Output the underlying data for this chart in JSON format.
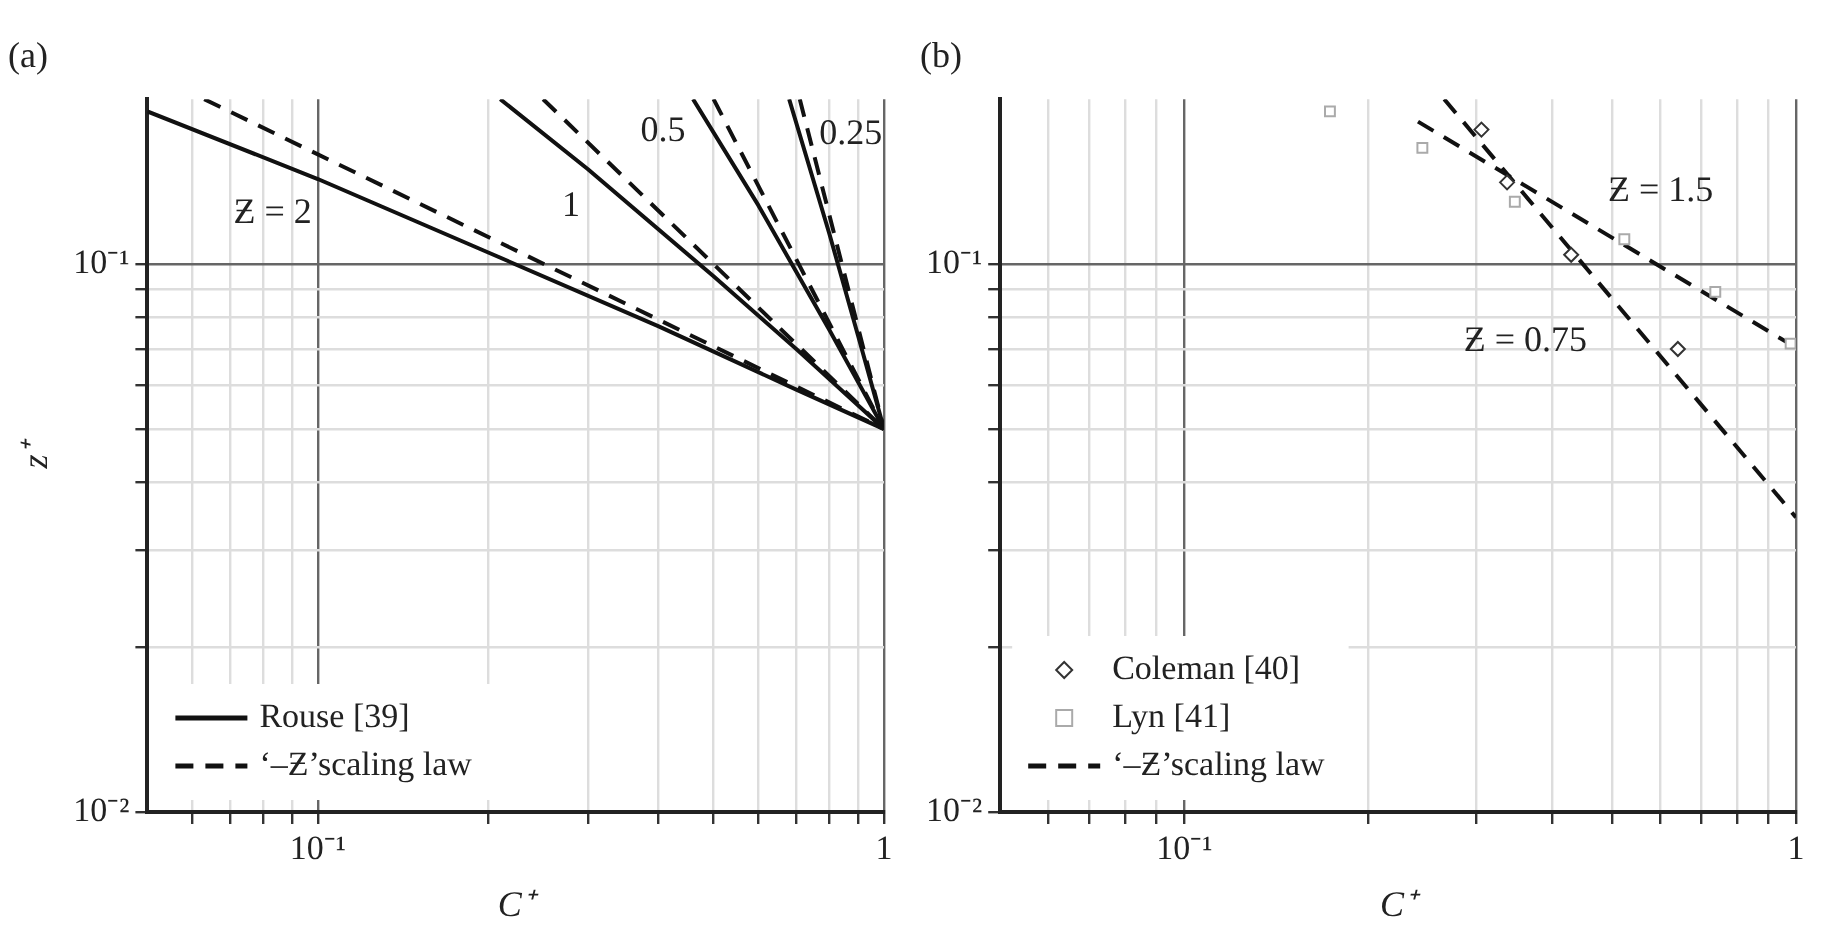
{
  "chart_data": [
    {
      "type": "line",
      "title": "(a)",
      "xlabel": "C⁺",
      "ylabel": "z⁺",
      "log": "xy",
      "grid": true,
      "legend": "bottom left",
      "xlim": [
        0.05,
        1
      ],
      "ylim": [
        0.01,
        0.2
      ],
      "xticks": [
        {
          "value": 0.06,
          "label": null
        },
        {
          "value": 0.07,
          "label": null
        },
        {
          "value": 0.08,
          "label": null
        },
        {
          "value": 0.09,
          "label": null
        },
        {
          "value": 0.1,
          "label": "10⁻¹"
        },
        {
          "value": 0.2,
          "label": null
        },
        {
          "value": 0.3,
          "label": null
        },
        {
          "value": 0.4,
          "label": null
        },
        {
          "value": 0.5,
          "label": null
        },
        {
          "value": 0.6,
          "label": null
        },
        {
          "value": 0.7,
          "label": null
        },
        {
          "value": 0.8,
          "label": null
        },
        {
          "value": 0.9,
          "label": null
        },
        {
          "value": 1,
          "label": "1"
        }
      ],
      "yticks": [
        {
          "value": 0.01,
          "label": "10⁻²"
        },
        {
          "value": 0.02,
          "label": null
        },
        {
          "value": 0.03,
          "label": null
        },
        {
          "value": 0.04,
          "label": null
        },
        {
          "value": 0.05,
          "label": null
        },
        {
          "value": 0.06,
          "label": null
        },
        {
          "value": 0.07,
          "label": null
        },
        {
          "value": 0.08,
          "label": null
        },
        {
          "value": 0.09,
          "label": null
        },
        {
          "value": 0.1,
          "label": "10⁻¹"
        }
      ],
      "series": [
        {
          "name": "Rouse [39]",
          "type": "line",
          "line_style": "solid",
          "marker": "none",
          "color": "#111111",
          "x": [
            0.05,
            0.1,
            0.2,
            0.4,
            0.7,
            1
          ],
          "values": [
            0.19,
            0.143,
            0.105,
            0.077,
            0.059,
            0.05
          ]
        },
        {
          "type": "line",
          "line_style": "solid",
          "marker": "none",
          "color": "#111111",
          "x": [
            0.21,
            0.3,
            0.5,
            0.7,
            1
          ],
          "values": [
            0.2,
            0.149,
            0.095,
            0.07,
            0.05
          ]
        },
        {
          "type": "line",
          "line_style": "solid",
          "marker": "none",
          "color": "#111111",
          "x": [
            0.46,
            0.6,
            0.8,
            1
          ],
          "values": [
            0.2,
            0.128,
            0.076,
            0.05
          ]
        },
        {
          "type": "line",
          "line_style": "solid",
          "marker": "none",
          "color": "#111111",
          "x": [
            0.68,
            0.8,
            0.9,
            1
          ],
          "values": [
            0.2,
            0.114,
            0.074,
            0.05
          ]
        },
        {
          "name": "‘–Ƶ’scaling law",
          "type": "line",
          "line_style": "dashed",
          "marker": "none",
          "color": "#111111",
          "x": [
            0.063,
            1
          ],
          "values": [
            0.2,
            0.05
          ]
        },
        {
          "type": "line",
          "line_style": "dashed",
          "marker": "none",
          "color": "#111111",
          "x": [
            0.25,
            1
          ],
          "values": [
            0.2,
            0.05
          ]
        },
        {
          "type": "line",
          "line_style": "dashed",
          "marker": "none",
          "color": "#111111",
          "x": [
            0.5,
            1
          ],
          "values": [
            0.2,
            0.05
          ]
        },
        {
          "type": "line",
          "line_style": "dashed",
          "marker": "none",
          "color": "#111111",
          "x": [
            0.71,
            1
          ],
          "values": [
            0.2,
            0.05
          ]
        }
      ],
      "annotations": [
        "Ƶ = 2",
        "1",
        "0.5",
        "0.25"
      ]
    },
    {
      "type": "line",
      "title": "(b)",
      "xlabel": "C⁺",
      "log": "xy",
      "grid": true,
      "legend": "bottom left",
      "xlim": [
        0.05,
        1
      ],
      "ylim": [
        0.01,
        0.2
      ],
      "xticks": [
        {
          "value": 0.06,
          "label": null
        },
        {
          "value": 0.07,
          "label": null
        },
        {
          "value": 0.08,
          "label": null
        },
        {
          "value": 0.09,
          "label": null
        },
        {
          "value": 0.1,
          "label": "10⁻¹"
        },
        {
          "value": 0.2,
          "label": null
        },
        {
          "value": 0.3,
          "label": null
        },
        {
          "value": 0.4,
          "label": null
        },
        {
          "value": 0.5,
          "label": null
        },
        {
          "value": 0.6,
          "label": null
        },
        {
          "value": 0.7,
          "label": null
        },
        {
          "value": 0.8,
          "label": null
        },
        {
          "value": 0.9,
          "label": null
        },
        {
          "value": 1,
          "label": "1"
        }
      ],
      "yticks": [
        {
          "value": 0.01,
          "label": "10⁻²"
        },
        {
          "value": 0.02,
          "label": null
        },
        {
          "value": 0.03,
          "label": null
        },
        {
          "value": 0.04,
          "label": null
        },
        {
          "value": 0.05,
          "label": null
        },
        {
          "value": 0.06,
          "label": null
        },
        {
          "value": 0.07,
          "label": null
        },
        {
          "value": 0.08,
          "label": null
        },
        {
          "value": 0.09,
          "label": null
        },
        {
          "value": 0.1,
          "label": "10⁻¹"
        }
      ],
      "series": [
        {
          "name": "Coleman [40]",
          "type": "scatter",
          "marker": "diamond",
          "color": "#333333",
          "x": [
            0.306,
            0.337,
            0.429,
            0.641
          ],
          "values": [
            0.176,
            0.141,
            0.104,
            0.07
          ]
        },
        {
          "name": "Lyn [41]",
          "type": "scatter",
          "marker": "square",
          "color": "#aaaaaa",
          "x": [
            0.173,
            0.245,
            0.347,
            0.524,
            0.738,
            0.98
          ],
          "values": [
            0.19,
            0.163,
            0.13,
            0.111,
            0.089,
            0.0716
          ]
        },
        {
          "name": "‘–Ƶ’scaling law",
          "type": "line",
          "line_style": "dashed",
          "marker": "none",
          "color": "#111111",
          "x": [
            0.241,
            1
          ],
          "values": [
            0.182,
            0.0704
          ]
        },
        {
          "type": "line",
          "line_style": "dashed",
          "marker": "none",
          "color": "#111111",
          "x": [
            0.266,
            1
          ],
          "values": [
            0.2,
            0.0345
          ]
        }
      ],
      "annotations": [
        "Ƶ = 1.5",
        "Ƶ = 0.75"
      ]
    }
  ]
}
